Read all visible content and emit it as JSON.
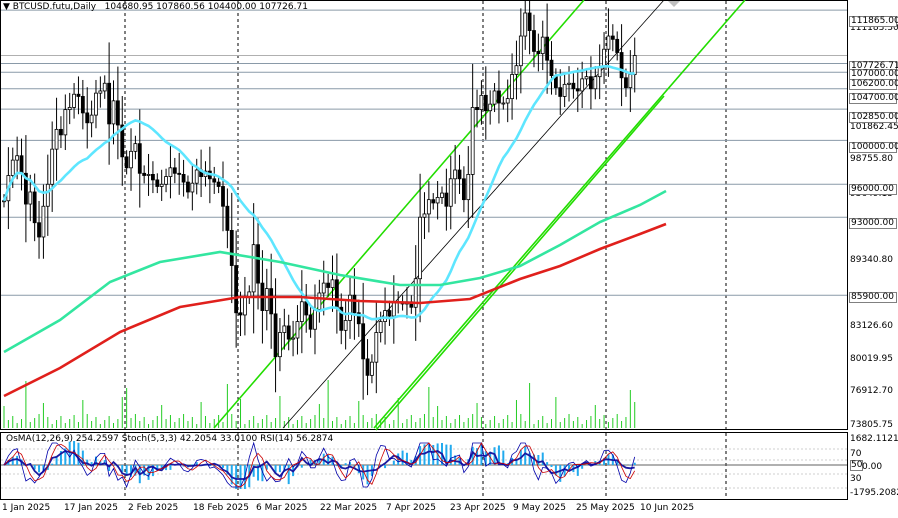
{
  "header": {
    "arrow_glyph": "▼",
    "symbol": "BTCUSD.futu,Daily",
    "ohlc": "104680.95 107860.56 104400.00 107726.71"
  },
  "oscillator_header": {
    "text": "OsMA(12,26,9) 254.2597  Stoch(5,3,3) 42.2054 33.0100  RSI(14) 56.2874"
  },
  "price_scale": {
    "ticks": [
      "111183.30",
      "101862.45",
      "98755.80",
      "95649.15",
      "92447.45",
      "89340.80",
      "83126.60",
      "80019.95",
      "76912.70",
      "73805.75"
    ],
    "boxed_levels": [
      "111865.00",
      "107726.71",
      "107000.00",
      "106200.00",
      "104700.00",
      "102850.00",
      "100000.00",
      "96000.00",
      "93000.00",
      "85900.00"
    ]
  },
  "osc_scale": {
    "max": "1682.1121",
    "min": "-1795.2082",
    "levels": [
      "70",
      "50",
      "30",
      "0.00"
    ]
  },
  "date_axis": {
    "labels": [
      "1 Jan 2025",
      "17 Jan 2025",
      "2 Feb 2025",
      "18 Feb 2025",
      "6 Mar 2025",
      "22 Mar 2025",
      "7 Apr 2025",
      "23 Apr 2025",
      "9 May 2025",
      "25 May 2025",
      "10 Jun 2025"
    ]
  },
  "colors": {
    "background": "#ffffff",
    "candles": "#000000",
    "ma_fast": "#5ee6ff",
    "ma_mid": "#33e6a0",
    "ma_slow": "#e0201c",
    "channel_green": "#22dd00",
    "channel_black": "#000000",
    "volume": "#22cc22",
    "osma_hist": "#22aaee",
    "stoch_main": "#0000aa",
    "stoch_signal": "#cc0000",
    "rsi": "#1a1aa0"
  },
  "chart_data": {
    "type": "candlestick",
    "title": "BTCUSD.futu,Daily",
    "last_ohlc": {
      "open": 104680.95,
      "high": 107860.56,
      "low": 104400.0,
      "close": 107726.71
    },
    "x_range": [
      "1 Jan 2025",
      "15 Jun 2025"
    ],
    "ylim": [
      73805.75,
      112500
    ],
    "horizontal_levels": [
      111865,
      107000,
      106200,
      104700,
      102850,
      100000,
      96000,
      93000,
      85900
    ],
    "close_series": [
      94500,
      96800,
      98200,
      98600,
      97000,
      94200,
      95300,
      92500,
      91200,
      94000,
      96000,
      99200,
      101000,
      100500,
      102800,
      103000,
      104200,
      104000,
      102500,
      101600,
      102300,
      104300,
      104500,
      105200,
      101500,
      103600,
      101400,
      98500,
      97500,
      99000,
      99700,
      97000,
      96800,
      96900,
      96400,
      95800,
      96000,
      96700,
      97500,
      97000,
      96900,
      96200,
      95300,
      96100,
      97300,
      96700,
      97200,
      96500,
      96200,
      95800,
      94000,
      91800,
      88600,
      84300,
      84100,
      85700,
      86200,
      90500,
      87000,
      84500,
      86500,
      84200,
      80300,
      82500,
      83100,
      81900,
      82000,
      83500,
      85300,
      84100,
      82800,
      84600,
      86100,
      87000,
      86600,
      87300,
      84800,
      82700,
      83600,
      85900,
      84300,
      83300,
      80100,
      78600,
      79800,
      82500,
      83500,
      84500,
      84000,
      85200,
      85300,
      85100,
      85300,
      84800,
      87400,
      93000,
      93300,
      94600,
      94300,
      94800,
      95200,
      94000,
      96500,
      97300,
      96500,
      94600,
      96900,
      103000,
      102800,
      104100,
      102700,
      103300,
      104500,
      103400,
      103400,
      103800,
      106000,
      106800,
      109500,
      111600,
      110000,
      108100,
      107900,
      109400,
      107300,
      105900,
      104800,
      104000,
      105100,
      105200,
      104700,
      104500,
      105600,
      105800,
      104700,
      105800,
      106700,
      108300,
      109500,
      109200,
      108000,
      105700,
      104800,
      106000,
      107726
    ]
  }
}
